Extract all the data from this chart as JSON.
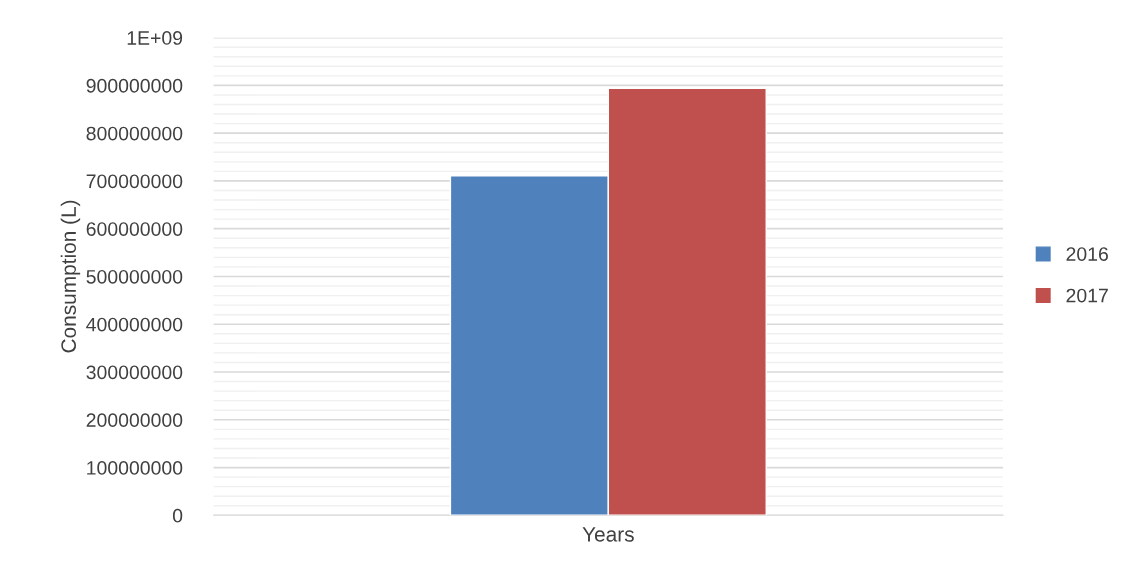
{
  "chart_data": {
    "type": "bar",
    "ylabel": "Consumption (L)",
    "categories": [
      "Years"
    ],
    "series": [
      {
        "name": "2016",
        "color": "#4f81bd",
        "values": [
          711000000
        ]
      },
      {
        "name": "2017",
        "color": "#c0504d",
        "values": [
          894000000
        ]
      }
    ],
    "ylim": [
      0,
      1000000000
    ],
    "yticks": [
      0,
      {
        "value": 20000000,
        "label": null
      },
      {
        "value": 40000000,
        "label": null
      },
      {
        "value": 60000000,
        "label": null
      },
      {
        "value": 80000000,
        "label": null
      },
      100000000,
      {
        "value": 120000000,
        "label": null
      },
      {
        "value": 140000000,
        "label": null
      },
      {
        "value": 160000000,
        "label": null
      },
      {
        "value": 180000000,
        "label": null
      },
      200000000,
      {
        "value": 220000000,
        "label": null
      },
      {
        "value": 240000000,
        "label": null
      },
      {
        "value": 260000000,
        "label": null
      },
      {
        "value": 280000000,
        "label": null
      },
      300000000,
      {
        "value": 320000000,
        "label": null
      },
      {
        "value": 340000000,
        "label": null
      },
      {
        "value": 360000000,
        "label": null
      },
      {
        "value": 380000000,
        "label": null
      },
      400000000,
      {
        "value": 420000000,
        "label": null
      },
      {
        "value": 440000000,
        "label": null
      },
      {
        "value": 460000000,
        "label": null
      },
      {
        "value": 480000000,
        "label": null
      },
      500000000,
      {
        "value": 520000000,
        "label": null
      },
      {
        "value": 540000000,
        "label": null
      },
      {
        "value": 560000000,
        "label": null
      },
      {
        "value": 580000000,
        "label": null
      },
      600000000,
      {
        "value": 620000000,
        "label": null
      },
      {
        "value": 640000000,
        "label": null
      },
      {
        "value": 660000000,
        "label": null
      },
      {
        "value": 680000000,
        "label": null
      },
      700000000,
      {
        "value": 720000000,
        "label": null
      },
      {
        "value": 740000000,
        "label": null
      },
      {
        "value": 760000000,
        "label": null
      },
      {
        "value": 780000000,
        "label": null
      },
      800000000,
      {
        "value": 820000000,
        "label": null
      },
      {
        "value": 840000000,
        "label": null
      },
      {
        "value": 860000000,
        "label": null
      },
      {
        "value": 880000000,
        "label": null
      },
      900000000,
      {
        "value": 920000000,
        "label": null
      },
      {
        "value": 940000000,
        "label": null
      },
      {
        "value": 960000000,
        "label": null
      },
      {
        "value": 980000000,
        "label": null
      },
      {
        "value": 1000000000,
        "label": "1E+09"
      }
    ],
    "grid": "y",
    "legend": "right"
  }
}
